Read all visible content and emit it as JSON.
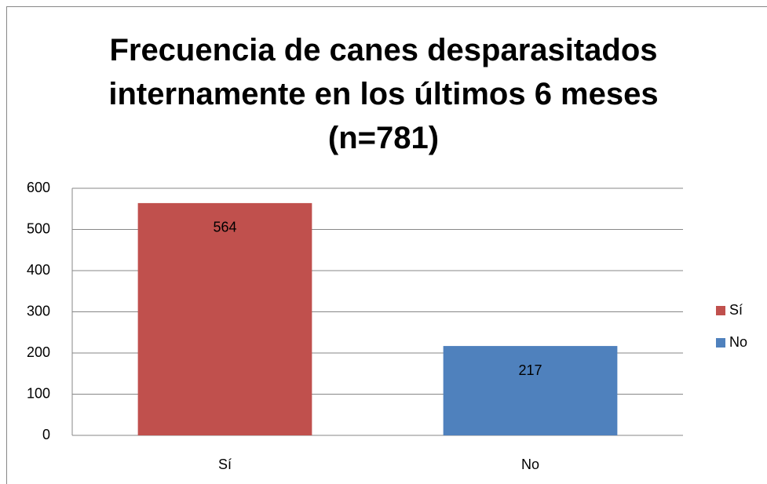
{
  "chart_data": {
    "type": "bar",
    "title": "Frecuencia de canes desparasitados internamente en los últimos 6 meses (n=781)",
    "categories": [
      "Sí",
      "No"
    ],
    "series": [
      {
        "name": "Sí",
        "color": "#c0504d",
        "values": [
          564,
          null
        ]
      },
      {
        "name": "No",
        "color": "#4f81bd",
        "values": [
          null,
          217
        ]
      }
    ],
    "ylim": [
      0,
      600
    ],
    "yticks": [
      0,
      100,
      200,
      300,
      400,
      500,
      600
    ],
    "grid": true,
    "legend": "right"
  }
}
